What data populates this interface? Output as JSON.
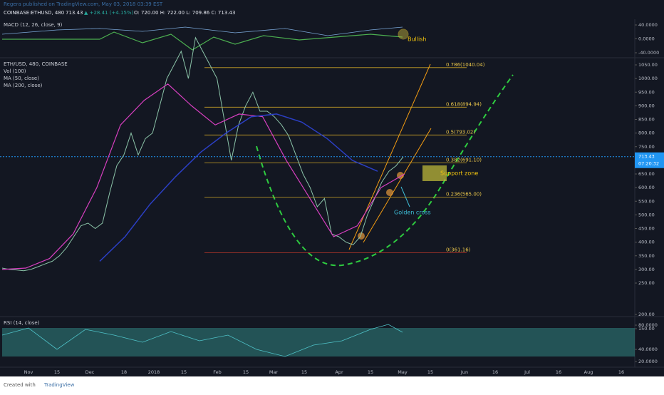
{
  "header": {
    "publisher": "Regera published on TradingView.com, May 03, 2018 03:39 EST",
    "symbol": "COINBASE:ETHUSD, 480",
    "last": "713.43",
    "change": "▲ +28.41 (+4.15%)",
    "ohlc": "O: 720.00 H: 722.00 L: 709.86 C: 713.43"
  },
  "panes": {
    "macd_label": "MACD (12, 26, close, 9)",
    "main_labels": [
      "ETH/USD, 480, COINBASE",
      "Vol (100)",
      "MA (50, close)",
      "MA (200, close)"
    ],
    "rsi_label": "RSI (14, close)"
  },
  "macd_axis": [
    {
      "value": 40,
      "label": "40.0000"
    },
    {
      "value": 0,
      "label": "0.0000"
    },
    {
      "value": -40,
      "label": "-40.0000"
    }
  ],
  "price_axis": [
    {
      "value": 1050,
      "label": "1050.00"
    },
    {
      "value": 1000,
      "label": "1000.00"
    },
    {
      "value": 950,
      "label": "950.00"
    },
    {
      "value": 900,
      "label": "900.00"
    },
    {
      "value": 850,
      "label": "850.00"
    },
    {
      "value": 800,
      "label": "800.00"
    },
    {
      "value": 750,
      "label": "750.00"
    },
    {
      "value": 650,
      "label": "650.00"
    },
    {
      "value": 600,
      "label": "600.00"
    },
    {
      "value": 550,
      "label": "550.00"
    },
    {
      "value": 500,
      "label": "500.00"
    },
    {
      "value": 450,
      "label": "450.00"
    },
    {
      "value": 400,
      "label": "400.00"
    },
    {
      "value": 350,
      "label": "350.00"
    },
    {
      "value": 300,
      "label": "300.00"
    },
    {
      "value": 250,
      "label": "250.00"
    }
  ],
  "volume_axis": [
    {
      "value": 200,
      "label": "200.00"
    },
    {
      "value": 150,
      "label": "150.00"
    }
  ],
  "rsi_axis": [
    {
      "value": 80,
      "label": "80.0000"
    },
    {
      "value": 40,
      "label": "40.0000"
    },
    {
      "value": 20,
      "label": "20.0000"
    }
  ],
  "last_price": {
    "value": 713.43,
    "label": "713.43",
    "countdown": "07:20:32"
  },
  "fib_levels": [
    {
      "value": 1040.04,
      "label": "0.786(1040.04)"
    },
    {
      "value": 894.94,
      "label": "0.618(894.94)"
    },
    {
      "value": 793.02,
      "label": "0.5(793.02)"
    },
    {
      "value": 691.1,
      "label": "0.382(691.10)"
    },
    {
      "value": 565,
      "label": "0.236(565.00)"
    },
    {
      "value": 361.16,
      "label": "0(361.16)"
    }
  ],
  "annotations": {
    "bullish": "Bullish",
    "support": "Support zone",
    "golden_cross": "Golden cross"
  },
  "x_axis": [
    "Nov",
    "15",
    "Dec",
    "18",
    "2018",
    "15",
    "Feb",
    "15",
    "Mar",
    "15",
    "Apr",
    "15",
    "May",
    "15",
    "Jun",
    "16",
    "Jul",
    "16",
    "Aug",
    "16"
  ],
  "price_sketch": {
    "close": [
      305,
      300,
      298,
      295,
      300,
      310,
      320,
      330,
      350,
      380,
      420,
      460,
      470,
      450,
      470,
      580,
      680,
      720,
      800,
      720,
      780,
      800,
      900,
      1000,
      1050,
      1100,
      1000,
      1150,
      1100,
      1050,
      1000,
      850,
      700,
      830,
      900,
      950,
      880,
      880,
      860,
      830,
      790,
      720,
      650,
      600,
      530,
      560,
      430,
      420,
      400,
      390,
      420,
      500,
      560,
      620,
      660,
      680,
      713
    ],
    "ma50": [
      300,
      305,
      340,
      430,
      600,
      830,
      920,
      980,
      900,
      830,
      870,
      860,
      700,
      560,
      420,
      460,
      600,
      650
    ],
    "ma200": [
      330,
      420,
      540,
      640,
      730,
      800,
      860,
      870,
      840,
      780,
      700,
      660
    ]
  },
  "footer": {
    "created": "Created with",
    "brand": "TradingView"
  }
}
